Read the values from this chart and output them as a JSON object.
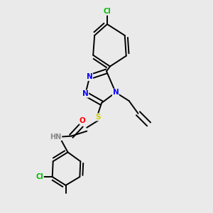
{
  "background_color": "#eaeaea",
  "bond_color": "#000000",
  "atom_colors": {
    "N": "#0000ff",
    "O": "#ff0000",
    "S": "#cccc00",
    "Cl": "#00bb00",
    "H": "#888888",
    "C": "#000000"
  },
  "figsize": [
    3.0,
    3.0
  ],
  "dpi": 100
}
